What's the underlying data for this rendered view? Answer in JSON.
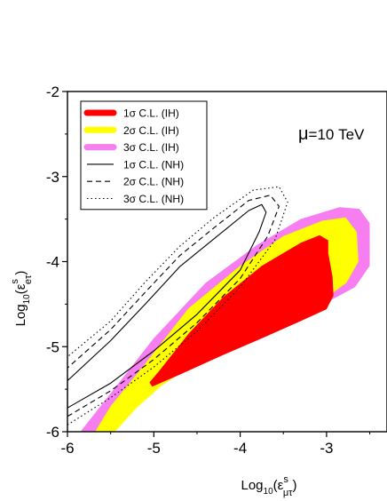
{
  "chart_data": {
    "type": "contour",
    "xlim": [
      -6,
      -2.3
    ],
    "ylim": [
      -6,
      -2
    ],
    "x_ticks": [
      -6,
      -5,
      -4,
      -3
    ],
    "y_ticks": [
      -2,
      -3,
      -4,
      -5,
      -6
    ],
    "x_tick_labels": [
      "-6",
      "-5",
      "-4",
      "-3"
    ],
    "y_tick_labels": [
      "-2",
      "-3",
      "-4",
      "-5",
      "-6"
    ],
    "xlabel": {
      "pre": "Log",
      "sub1": "10",
      "mid": "(ε",
      "sup": "s",
      "sub2": "μτ",
      "post": ")"
    },
    "ylabel": {
      "pre": "Log",
      "sub1": "10",
      "mid": "(ε",
      "sup": "s",
      "sub2": "eτ",
      "post": ")"
    },
    "annotation": {
      "mu": "μ",
      "rest": "=10 TeV"
    },
    "legend_position": "top-left",
    "series": [
      {
        "name": "3σ C.L. (IH)",
        "style": "fill",
        "color": "#f77ef0",
        "points": [
          [
            -5.6,
            -6.0
          ],
          [
            -5.35,
            -5.78
          ],
          [
            -5.0,
            -5.52
          ],
          [
            -4.5,
            -5.18
          ],
          [
            -4.0,
            -4.92
          ],
          [
            -3.5,
            -4.7
          ],
          [
            -3.0,
            -4.48
          ],
          [
            -2.67,
            -4.3
          ],
          [
            -2.5,
            -4.05
          ],
          [
            -2.5,
            -3.55
          ],
          [
            -2.62,
            -3.38
          ],
          [
            -2.85,
            -3.36
          ],
          [
            -3.3,
            -3.5
          ],
          [
            -3.8,
            -3.8
          ],
          [
            -4.4,
            -4.25
          ],
          [
            -5.0,
            -4.9
          ],
          [
            -5.5,
            -5.55
          ],
          [
            -5.85,
            -6.0
          ]
        ]
      },
      {
        "name": "2σ C.L. (IH)",
        "style": "fill",
        "color": "#ffff00",
        "points": [
          [
            -5.45,
            -6.0
          ],
          [
            -5.2,
            -5.72
          ],
          [
            -4.9,
            -5.45
          ],
          [
            -4.4,
            -5.12
          ],
          [
            -3.9,
            -4.86
          ],
          [
            -3.4,
            -4.62
          ],
          [
            -3.0,
            -4.42
          ],
          [
            -2.77,
            -4.25
          ],
          [
            -2.63,
            -4.0
          ],
          [
            -2.65,
            -3.65
          ],
          [
            -2.78,
            -3.48
          ],
          [
            -3.05,
            -3.52
          ],
          [
            -3.5,
            -3.7
          ],
          [
            -4.0,
            -4.05
          ],
          [
            -4.6,
            -4.55
          ],
          [
            -5.1,
            -5.2
          ],
          [
            -5.5,
            -5.7
          ],
          [
            -5.68,
            -6.0
          ]
        ]
      },
      {
        "name": "1σ C.L. (IH)",
        "style": "fill",
        "color": "#ff0000",
        "points": [
          [
            -5.02,
            -5.47
          ],
          [
            -4.7,
            -5.33
          ],
          [
            -4.2,
            -5.1
          ],
          [
            -3.7,
            -4.88
          ],
          [
            -3.3,
            -4.7
          ],
          [
            -3.0,
            -4.56
          ],
          [
            -2.92,
            -4.4
          ],
          [
            -2.93,
            -4.18
          ],
          [
            -2.98,
            -3.9
          ],
          [
            -2.98,
            -3.75
          ],
          [
            -3.08,
            -3.69
          ],
          [
            -3.3,
            -3.78
          ],
          [
            -3.75,
            -4.05
          ],
          [
            -4.2,
            -4.42
          ],
          [
            -4.6,
            -4.85
          ],
          [
            -4.95,
            -5.3
          ],
          [
            -5.05,
            -5.42
          ]
        ]
      },
      {
        "name": "1σ C.L. (NH)",
        "style": "solid",
        "color": "#000000",
        "points": [
          [
            -6.0,
            -5.72
          ],
          [
            -5.5,
            -5.43
          ],
          [
            -5.0,
            -5.05
          ],
          [
            -4.5,
            -4.62
          ],
          [
            -4.0,
            -4.1
          ],
          [
            -3.78,
            -3.65
          ],
          [
            -3.7,
            -3.42
          ],
          [
            -3.75,
            -3.33
          ],
          [
            -3.9,
            -3.4
          ],
          [
            -4.3,
            -3.73
          ],
          [
            -4.7,
            -4.06
          ],
          [
            -5.1,
            -4.5
          ],
          [
            -5.5,
            -4.93
          ],
          [
            -6.0,
            -5.4
          ]
        ]
      },
      {
        "name": "2σ C.L. (NH)",
        "style": "dashed",
        "color": "#000000",
        "points": [
          [
            -6.0,
            -5.82
          ],
          [
            -5.5,
            -5.52
          ],
          [
            -5.0,
            -5.15
          ],
          [
            -4.5,
            -4.72
          ],
          [
            -4.0,
            -4.2
          ],
          [
            -3.68,
            -3.7
          ],
          [
            -3.55,
            -3.35
          ],
          [
            -3.65,
            -3.22
          ],
          [
            -3.9,
            -3.28
          ],
          [
            -4.3,
            -3.6
          ],
          [
            -4.7,
            -3.93
          ],
          [
            -5.1,
            -4.36
          ],
          [
            -5.5,
            -4.8
          ],
          [
            -6.0,
            -5.25
          ]
        ]
      },
      {
        "name": "3σ C.L. (NH)",
        "style": "dotted",
        "color": "#000000",
        "points": [
          [
            -6.0,
            -5.92
          ],
          [
            -5.5,
            -5.6
          ],
          [
            -5.0,
            -5.24
          ],
          [
            -4.5,
            -4.82
          ],
          [
            -4.0,
            -4.3
          ],
          [
            -3.6,
            -3.75
          ],
          [
            -3.45,
            -3.3
          ],
          [
            -3.55,
            -3.12
          ],
          [
            -3.85,
            -3.16
          ],
          [
            -4.3,
            -3.48
          ],
          [
            -4.7,
            -3.82
          ],
          [
            -5.1,
            -4.24
          ],
          [
            -5.5,
            -4.7
          ],
          [
            -6.0,
            -5.12
          ]
        ]
      }
    ],
    "legend_order": [
      2,
      1,
      0,
      3,
      4,
      5
    ]
  }
}
